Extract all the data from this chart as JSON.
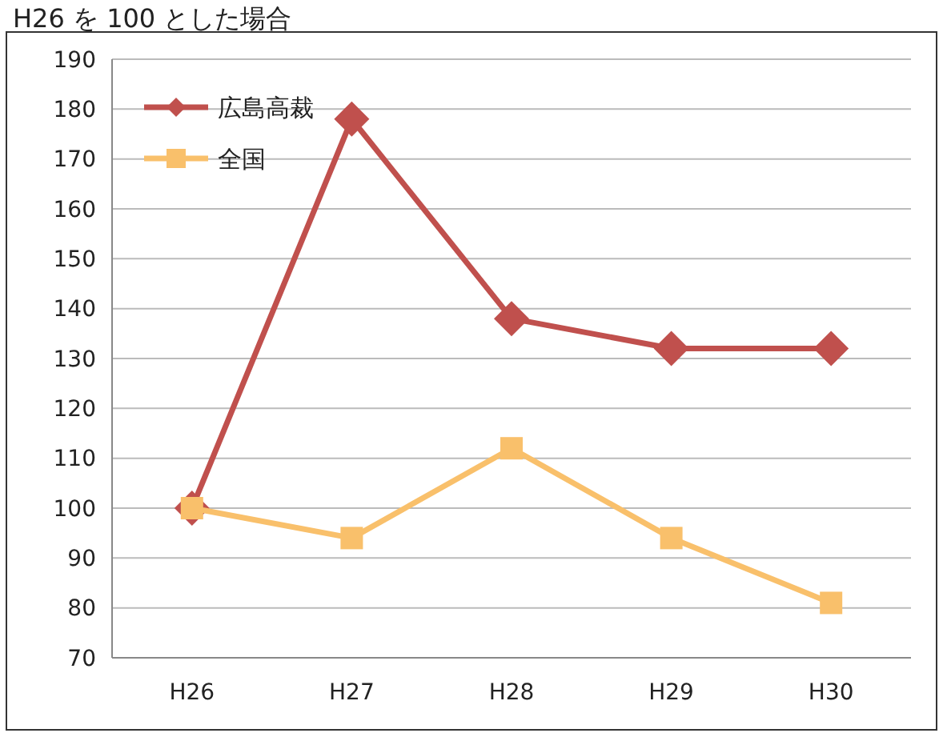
{
  "chart_data": {
    "type": "line",
    "title": "H26 を 100 とした場合",
    "categories": [
      "H26",
      "H27",
      "H28",
      "H29",
      "H30"
    ],
    "series": [
      {
        "name": "広島高裁",
        "color": "#c0504d",
        "values": [
          100,
          178,
          138,
          132,
          132
        ],
        "marker": "diamond"
      },
      {
        "name": "全国",
        "color": "#f9c06b",
        "values": [
          100,
          94,
          112,
          94,
          81
        ],
        "marker": "square"
      }
    ],
    "ylim": [
      70,
      190
    ],
    "yticks": [
      70,
      80,
      90,
      100,
      110,
      120,
      130,
      140,
      150,
      160,
      170,
      180,
      190
    ],
    "grid": "y",
    "legend": "top left"
  }
}
